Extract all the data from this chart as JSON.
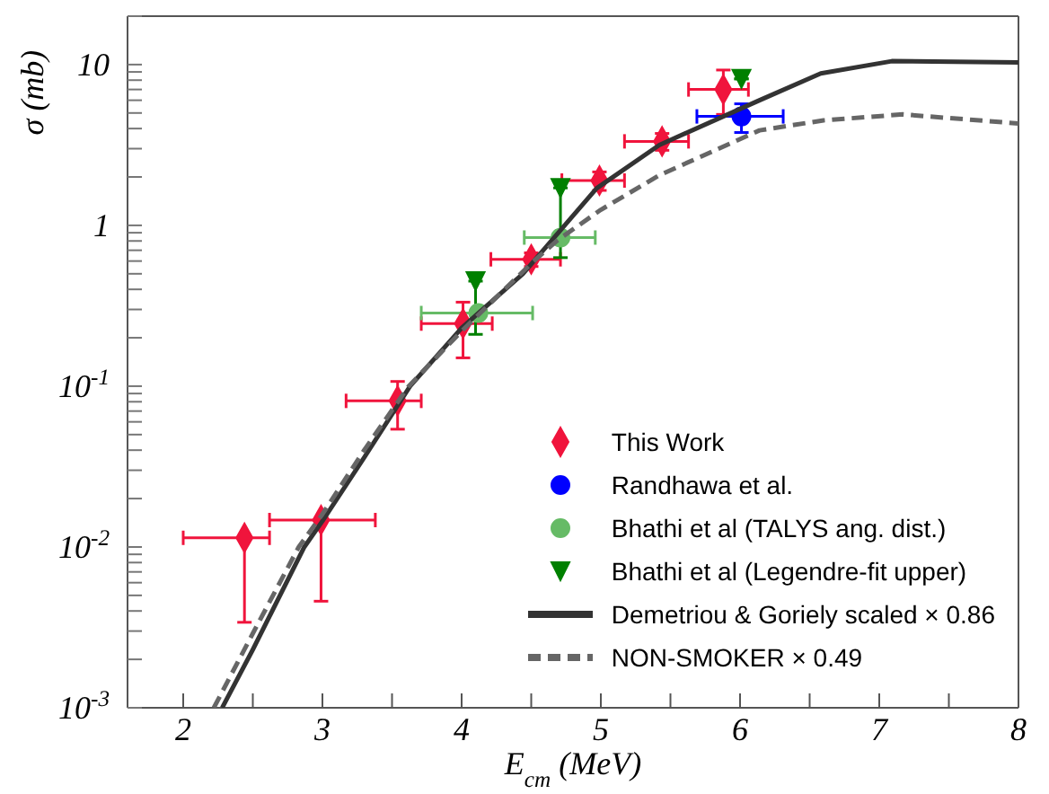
{
  "chart_data": {
    "type": "scatter",
    "xlabel": "E$_{cm}$ (MeV)",
    "ylabel": "σ (mb)",
    "log": "y",
    "xlim": [
      1.6,
      8
    ],
    "ylim": [
      0.001,
      20
    ],
    "xticks": [
      2,
      {
        "value": 2.5,
        "label": null
      },
      3,
      {
        "value": 3.5,
        "label": null
      },
      4,
      {
        "value": 4.5,
        "label": null
      },
      5,
      {
        "value": 5.5,
        "label": null
      },
      6,
      {
        "value": 6.5,
        "label": null
      },
      7,
      {
        "value": 7.5,
        "label": null
      },
      8
    ],
    "yticks": [
      {
        "value": 0.001,
        "label": "10$^{-3}$"
      },
      {
        "value": 0.002,
        "label": null
      },
      {
        "value": 0.003,
        "label": null
      },
      {
        "value": 0.004,
        "label": null
      },
      {
        "value": 0.005,
        "label": null
      },
      {
        "value": 0.006,
        "label": null
      },
      {
        "value": 0.007,
        "label": null
      },
      {
        "value": 0.008,
        "label": null
      },
      {
        "value": 0.009,
        "label": null
      },
      {
        "value": 0.01,
        "label": "10$^{-2}$"
      },
      {
        "value": 0.02,
        "label": null
      },
      {
        "value": 0.03,
        "label": null
      },
      {
        "value": 0.04,
        "label": null
      },
      {
        "value": 0.05,
        "label": null
      },
      {
        "value": 0.06,
        "label": null
      },
      {
        "value": 0.07,
        "label": null
      },
      {
        "value": 0.08,
        "label": null
      },
      {
        "value": 0.09,
        "label": null
      },
      {
        "value": 0.1,
        "label": "10$^{-1}$"
      },
      {
        "value": 0.2,
        "label": null
      },
      {
        "value": 0.3,
        "label": null
      },
      {
        "value": 0.4,
        "label": null
      },
      {
        "value": 0.5,
        "label": null
      },
      {
        "value": 0.6,
        "label": null
      },
      {
        "value": 0.7,
        "label": null
      },
      {
        "value": 0.8,
        "label": null
      },
      {
        "value": 0.9,
        "label": null
      },
      1,
      {
        "value": 2,
        "label": null
      },
      {
        "value": 3,
        "label": null
      },
      {
        "value": 4,
        "label": null
      },
      {
        "value": 5,
        "label": null
      },
      {
        "value": 6,
        "label": null
      },
      {
        "value": 7,
        "label": null
      },
      {
        "value": 8,
        "label": null
      },
      {
        "value": 9,
        "label": null
      },
      10,
      {
        "value": 20,
        "label": null
      }
    ],
    "legend": "bottom right",
    "series": [
      {
        "name": "This Work",
        "marker": "diamond",
        "color": "#f0143c",
        "x": [
          2.44,
          2.99,
          3.54,
          4.01,
          4.5,
          4.99,
          5.44,
          5.88
        ],
        "values": [
          0.0114,
          0.0147,
          0.081,
          0.245,
          0.615,
          1.9,
          3.33,
          7.0
        ],
        "errors": [
          [
            0.0034,
            0.0114
          ],
          [
            0.0046,
            0.0147
          ],
          [
            0.054,
            0.107
          ],
          [
            0.15,
            0.333
          ],
          [
            0.555,
            0.675
          ],
          [
            1.65,
            2.15
          ],
          [
            2.93,
            3.73
          ],
          [
            4.9,
            9.25
          ]
        ],
        "xerrors": [
          [
            2.0,
            2.62
          ],
          [
            2.62,
            3.38
          ],
          [
            3.17,
            3.71
          ],
          [
            3.71,
            4.22
          ],
          [
            4.21,
            4.71
          ],
          [
            4.72,
            5.17
          ],
          [
            5.17,
            5.63
          ],
          [
            5.63,
            6.06
          ]
        ]
      },
      {
        "name": "Randhawa et al.",
        "marker": "circle",
        "color": "#0000ff",
        "x": [
          6.01
        ],
        "values": [
          4.76
        ],
        "errors": [
          [
            3.78,
            5.7
          ]
        ],
        "xerrors": [
          [
            5.69,
            6.31
          ]
        ]
      },
      {
        "name": "Bhathi et al (TALYS ang. dist.)",
        "marker": "circle",
        "color": "#66bb66",
        "x": [
          4.12,
          4.71
        ],
        "values": [
          0.285,
          0.84
        ],
        "xerrors": [
          [
            3.71,
            4.51
          ],
          [
            4.45,
            4.96
          ]
        ]
      },
      {
        "name": "Bhathi et al (Legendre-fit upper)",
        "marker": "triangle",
        "color": "#008000",
        "x": [
          4.1,
          4.71,
          6.01
        ],
        "values": [
          0.45,
          1.71,
          8.15
        ],
        "errors": [
          [
            0.21,
            0.45
          ],
          [
            0.63,
            1.71
          ],
          null
        ]
      },
      {
        "name": "Demetriou & Goriely scaled × 0.86",
        "type": "line",
        "line_style": "solid",
        "color": "#333333",
        "x": [
          2.28,
          2.5,
          2.87,
          3.0,
          3.3,
          3.63,
          4.0,
          4.44,
          4.97,
          5.42,
          6.14,
          6.58,
          7.09,
          8
        ],
        "values": [
          0.001,
          0.0023,
          0.01,
          0.0145,
          0.036,
          0.1,
          0.23,
          0.5,
          1.7,
          3.16,
          6.0,
          8.8,
          10.5,
          10.3
        ]
      },
      {
        "name": "NON-SMOKER × 0.49",
        "type": "line",
        "line_style": "dashed",
        "color": "#666666",
        "x": [
          2.22,
          2.5,
          2.83,
          3.0,
          3.3,
          3.62,
          4.0,
          4.5,
          4.69,
          5.0,
          5.42,
          6.14,
          6.6,
          7.17,
          8
        ],
        "values": [
          0.001,
          0.0029,
          0.01,
          0.016,
          0.04,
          0.1,
          0.22,
          0.58,
          0.81,
          1.25,
          2.05,
          3.9,
          4.5,
          4.9,
          4.3
        ]
      }
    ]
  }
}
